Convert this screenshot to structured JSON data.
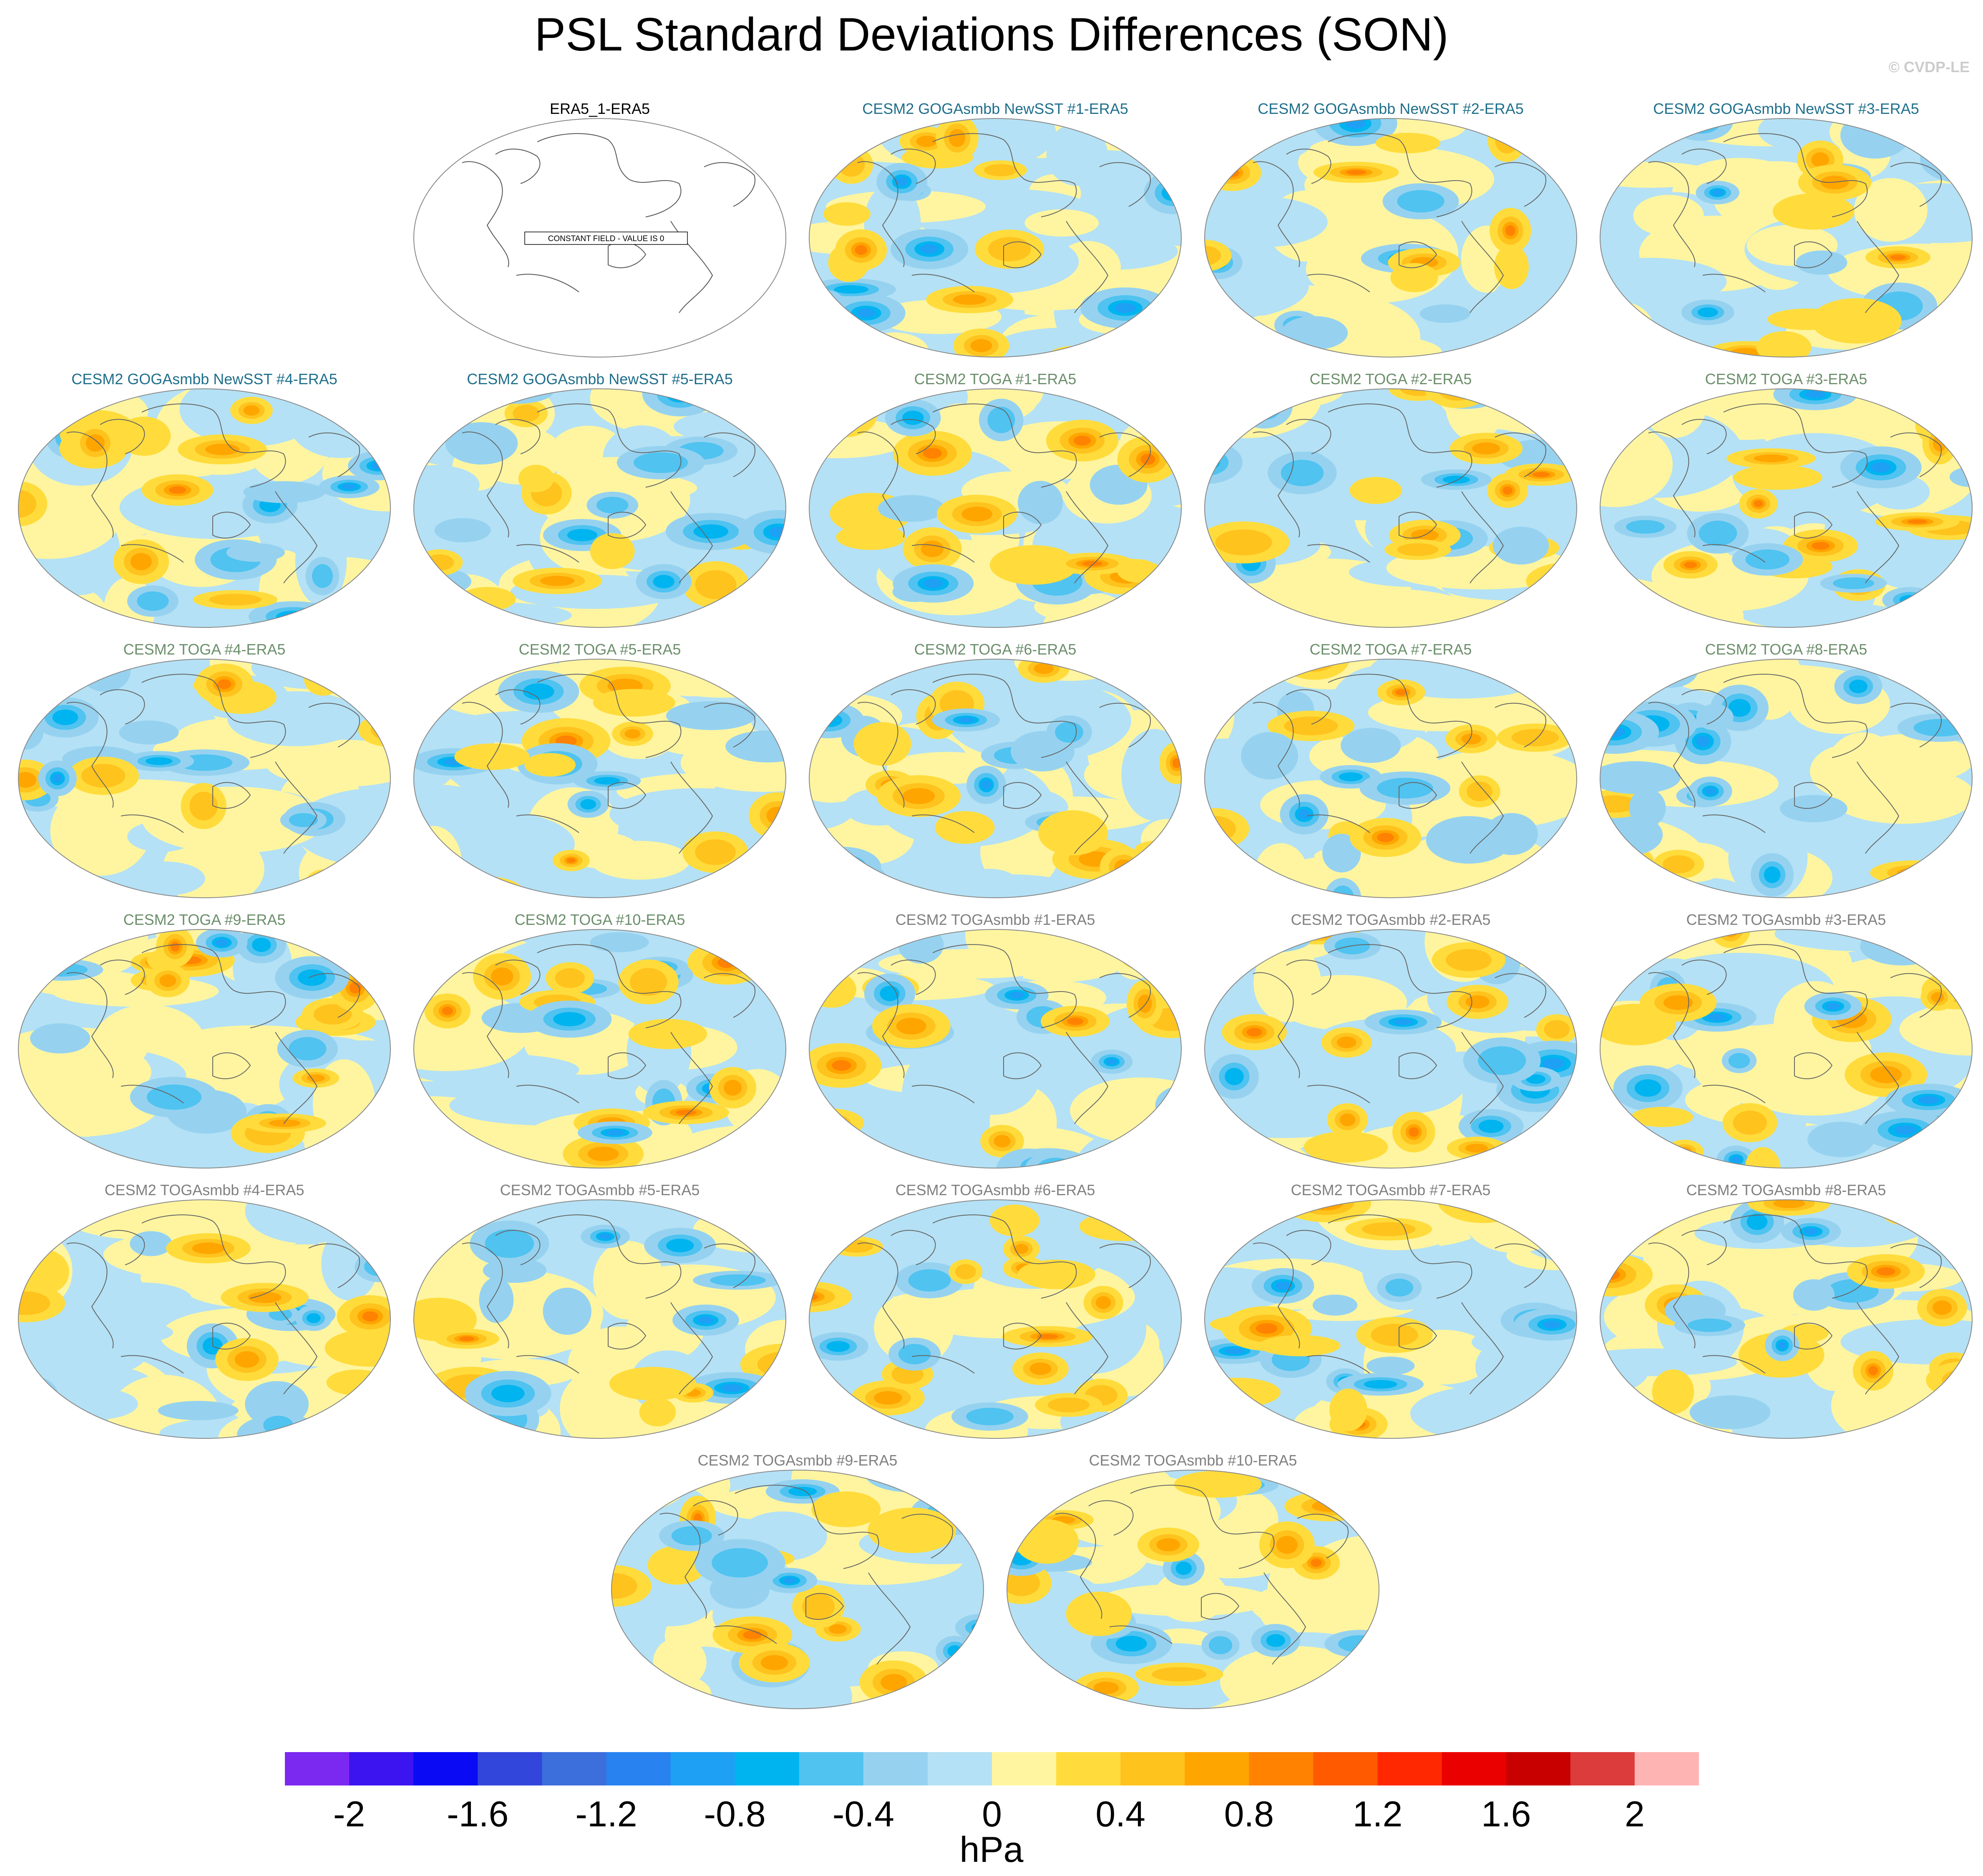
{
  "title": "PSL Standard Deviations Differences (SON)",
  "watermark": "© CVDP-LE",
  "colors": {
    "title_gogasmbb": "#1f6f8b",
    "title_toga": "#6b8e6b",
    "title_togasmbb": "#808080",
    "title_era5": "#000000"
  },
  "panels": [
    {
      "title": "ERA5_1-ERA5",
      "group": "era5",
      "constant_label": "CONSTANT FIELD - VALUE IS 0"
    },
    {
      "title": "CESM2 GOGAsmbb NewSST #1-ERA5",
      "group": "gogasmbb"
    },
    {
      "title": "CESM2 GOGAsmbb NewSST #2-ERA5",
      "group": "gogasmbb"
    },
    {
      "title": "CESM2 GOGAsmbb NewSST #3-ERA5",
      "group": "gogasmbb"
    },
    {
      "title": "CESM2 GOGAsmbb NewSST #4-ERA5",
      "group": "gogasmbb"
    },
    {
      "title": "CESM2 GOGAsmbb NewSST #5-ERA5",
      "group": "gogasmbb"
    },
    {
      "title": "CESM2 TOGA #1-ERA5",
      "group": "toga"
    },
    {
      "title": "CESM2 TOGA #2-ERA5",
      "group": "toga"
    },
    {
      "title": "CESM2 TOGA #3-ERA5",
      "group": "toga"
    },
    {
      "title": "CESM2 TOGA #4-ERA5",
      "group": "toga"
    },
    {
      "title": "CESM2 TOGA #5-ERA5",
      "group": "toga"
    },
    {
      "title": "CESM2 TOGA #6-ERA5",
      "group": "toga"
    },
    {
      "title": "CESM2 TOGA #7-ERA5",
      "group": "toga"
    },
    {
      "title": "CESM2 TOGA #8-ERA5",
      "group": "toga"
    },
    {
      "title": "CESM2 TOGA #9-ERA5",
      "group": "toga"
    },
    {
      "title": "CESM2 TOGA #10-ERA5",
      "group": "toga"
    },
    {
      "title": "CESM2 TOGAsmbb #1-ERA5",
      "group": "togasmbb"
    },
    {
      "title": "CESM2 TOGAsmbb #2-ERA5",
      "group": "togasmbb"
    },
    {
      "title": "CESM2 TOGAsmbb #3-ERA5",
      "group": "togasmbb"
    },
    {
      "title": "CESM2 TOGAsmbb #4-ERA5",
      "group": "togasmbb"
    },
    {
      "title": "CESM2 TOGAsmbb #5-ERA5",
      "group": "togasmbb"
    },
    {
      "title": "CESM2 TOGAsmbb #6-ERA5",
      "group": "togasmbb"
    },
    {
      "title": "CESM2 TOGAsmbb #7-ERA5",
      "group": "togasmbb"
    },
    {
      "title": "CESM2 TOGAsmbb #8-ERA5",
      "group": "togasmbb"
    },
    {
      "title": "CESM2 TOGAsmbb #9-ERA5",
      "group": "togasmbb"
    },
    {
      "title": "CESM2 TOGAsmbb #10-ERA5",
      "group": "togasmbb"
    }
  ],
  "colorbar": {
    "unit": "hPa",
    "colors": [
      "#7b28f0",
      "#3c14f0",
      "#0a0af5",
      "#3246dc",
      "#3c6edc",
      "#2882f0",
      "#1ea0f5",
      "#00b4f0",
      "#50c3f0",
      "#96d2f0",
      "#b4e1f5",
      "#fff5a0",
      "#ffdc3c",
      "#ffc31e",
      "#ffa500",
      "#ff8200",
      "#ff5a00",
      "#ff2800",
      "#eb0000",
      "#c80000",
      "#dc3c3c",
      "#ffb4b4"
    ],
    "tick_labels": [
      "-2",
      "-1.6",
      "-1.2",
      "-0.8",
      "-0.4",
      "0",
      "0.4",
      "0.8",
      "1.2",
      "1.6",
      "2"
    ]
  }
}
